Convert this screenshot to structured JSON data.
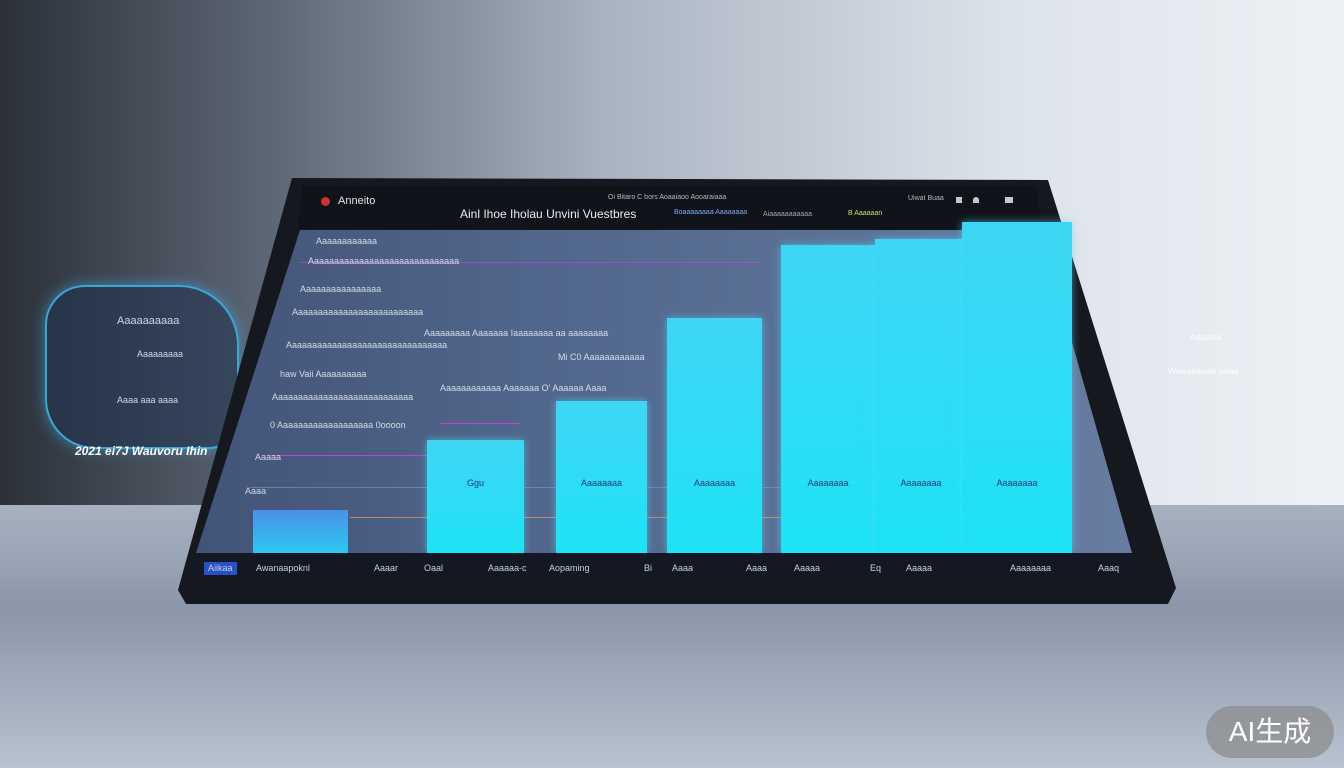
{
  "header": {
    "app_name": "Anneito",
    "title": "Ainl Ihoe Iholau Unvini Vuestbres",
    "top_menu": "Oi Bitaro C bors  Aoaaiaoo  Aooaraiaaa",
    "status": "Uiwat Buaa",
    "sub_link": "Boaaaaaaaa Aaaaaaaa",
    "sub_text": "Aiaaaaaaaaaaa",
    "sub_badge": "B Aaaaaan"
  },
  "chart_data": {
    "type": "bar",
    "categories": [
      "",
      "",
      "",
      "",
      "",
      ""
    ],
    "values": [
      34,
      46,
      71,
      93,
      95,
      100
    ],
    "title": "",
    "xlabel": "",
    "ylabel": ""
  },
  "chart_labels": [
    "Ggu",
    "Aaaaaaaa",
    "Aaaaaaaa",
    "Aaaaaaaa",
    "Aaaaaaaa",
    "Aaaaaaaa"
  ],
  "left_labels": [
    "Aaaaaaaaaaaa",
    "Aaaaaaaaaaaaaaaaaaaaaaaaaaaaaa",
    "Aaaaaaaaaaaaaaaa",
    "Aaaaaaaaaaaaaaaaaaaaaaaaaa",
    "Aaaaaaaaaaaaaaaaaaaaaaaaaaaaaaaa",
    "haw Vaii Aaaaaaaaaa",
    "Aaaaaaaaaaaaaaaaaaaaaaaaaaaa",
    "0 Aaaaaaaaaaaaaaaaaaa 0oooon",
    "Aaaaa",
    "Aaaa"
  ],
  "annotations": [
    "Aaaaaaaaa Aaaaaaa Iaaaaaaaa aa aaaaaaaa",
    "Mi C0 Aaaaaaaaaaaa",
    "Aaaaaaaaaaaa Aaaaaaa O' Aaaaaa Aaaa"
  ],
  "bottom_tabs": [
    "Aiikaa",
    "Awanaapoknl",
    "Aaaar",
    "Oaal",
    "Aaaaaa-c",
    "Aopaming",
    "Bi",
    "Aaaa",
    "Aaaa",
    "Aaaaa",
    "Eq",
    "Aaaaa",
    "Aaaaaaaa",
    "Aaaq"
  ],
  "floating_panel": {
    "title": "Aaaaaaaaaa",
    "year_label": "2021 ei7J Wauvoru Ihin",
    "lines": [
      "Aaaaaaaaa",
      "Aaaa aaa aaaa"
    ]
  },
  "right_panel": {
    "lines": [
      "Aaaaaa",
      "Waaaaaaaa aaaa"
    ]
  },
  "watermark": "AI生成",
  "colors": {
    "bar": "#2ee0f5",
    "screen": "#51668c",
    "bezel": "#15181e",
    "accent_line": "#c040e0"
  }
}
